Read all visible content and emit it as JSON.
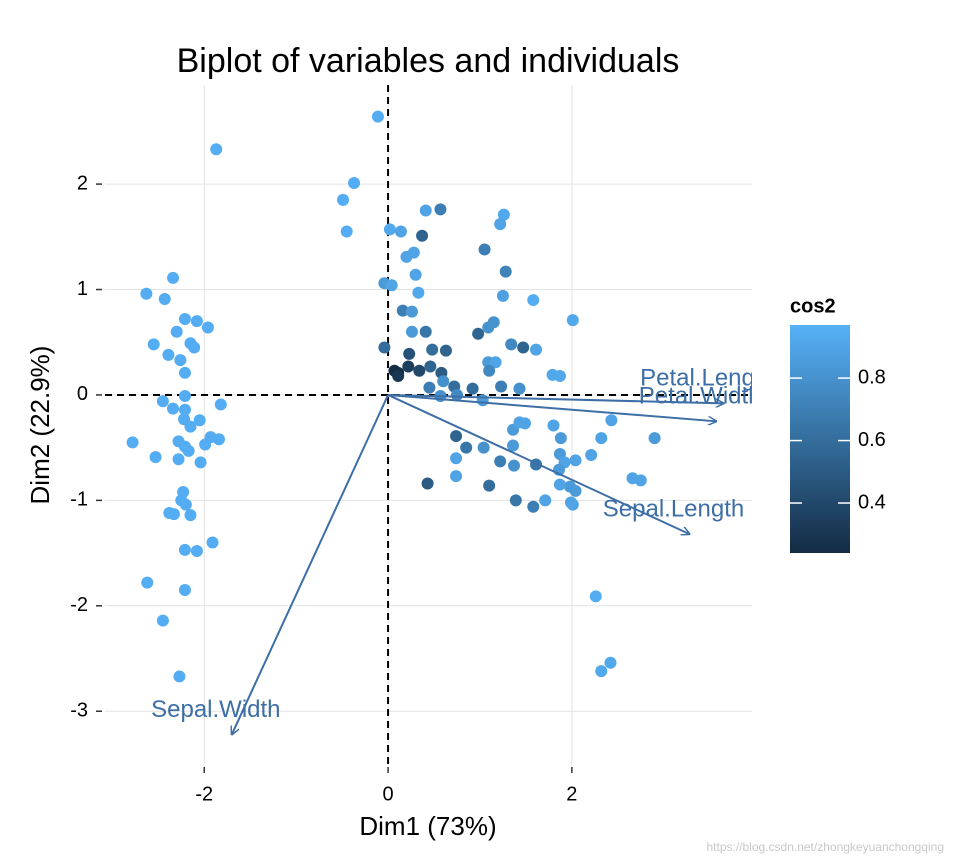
{
  "chart_data": {
    "type": "biplot",
    "title": "Biplot of variables and individuals",
    "x_label": "Dim1 (73%)",
    "y_label": "Dim2 (22.9%)",
    "xlim": [
      -3.08,
      3.96
    ],
    "ylim": [
      -3.51,
      2.94
    ],
    "xticks": [
      -2,
      0,
      2
    ],
    "yticks": [
      -3,
      -2,
      -1,
      0,
      1,
      2
    ],
    "grid": true,
    "x": [
      -1.87,
      -2.34,
      -2.63,
      -2.43,
      -2.21,
      -2.08,
      -2.3,
      -1.96,
      -2.15,
      -2.11,
      -2.55,
      -2.39,
      -2.26,
      -2.21,
      -2.21,
      -2.45,
      -1.82,
      -2.34,
      -2.21,
      -2.22,
      -2.05,
      -2.15,
      -2.78,
      -2.28,
      -1.93,
      -1.84,
      -1.99,
      -2.21,
      -2.17,
      -2.53,
      -2.28,
      -2.04,
      -2.23,
      -2.25,
      -2.2,
      -2.38,
      -2.33,
      -2.15,
      -1.91,
      -2.21,
      -2.08,
      -2.62,
      -2.21,
      -2.45,
      -2.27,
      -0.11,
      -0.37,
      -0.49,
      -0.45,
      0.02,
      0.14,
      0.37,
      0.41,
      0.57,
      1.26,
      1.22,
      1.05,
      0.2,
      0.28,
      1.28,
      -0.04,
      0.04,
      0.3,
      0.33,
      1.25,
      1.58,
      0.16,
      0.26,
      2.01,
      1.15,
      1.09,
      0.26,
      0.41,
      0.98,
      -0.04,
      1.34,
      0.48,
      0.63,
      0.23,
      1.47,
      1.61,
      0.22,
      0.07,
      0.11,
      0.11,
      0.34,
      0.46,
      0.58,
      1.09,
      1.17,
      1.1,
      1.79,
      1.87,
      0.45,
      0.6,
      0.72,
      0.92,
      0.57,
      1.23,
      1.43,
      0.75,
      1.03,
      2.43,
      1.36,
      1.43,
      1.49,
      1.8,
      1.88,
      2.32,
      2.9,
      0.74,
      0.85,
      1.04,
      1.36,
      1.87,
      2.21,
      1.22,
      0.74,
      1.61,
      1.92,
      2.04,
      1.86,
      2.66,
      2.75,
      0.74,
      1.37,
      0.43,
      1.1,
      2.04,
      1.98,
      1.87,
      1.39,
      1.71,
      1.99,
      2.01,
      1.58,
      2.26,
      2.42,
      2.32
    ],
    "y": [
      2.33,
      1.11,
      0.96,
      0.91,
      0.72,
      0.7,
      0.6,
      0.64,
      0.49,
      0.45,
      0.48,
      0.38,
      0.33,
      0.21,
      -0.01,
      -0.06,
      -0.09,
      -0.13,
      -0.14,
      -0.23,
      -0.24,
      -0.3,
      -0.45,
      -0.44,
      -0.4,
      -0.42,
      -0.47,
      -0.49,
      -0.53,
      -0.59,
      -0.61,
      -0.64,
      -0.92,
      -1.0,
      -1.04,
      -1.12,
      -1.13,
      -1.14,
      -1.4,
      -1.47,
      -1.48,
      -1.78,
      -1.85,
      -2.14,
      -2.67,
      2.64,
      2.01,
      1.85,
      1.55,
      1.57,
      1.55,
      1.51,
      1.75,
      1.76,
      1.71,
      1.62,
      1.38,
      1.31,
      1.35,
      1.17,
      1.06,
      1.04,
      1.14,
      0.97,
      0.94,
      0.9,
      0.8,
      0.79,
      0.71,
      0.69,
      0.64,
      0.6,
      0.6,
      0.58,
      0.45,
      0.48,
      0.43,
      0.42,
      0.39,
      0.45,
      0.43,
      0.27,
      0.23,
      0.21,
      0.18,
      0.23,
      0.27,
      0.21,
      0.31,
      0.31,
      0.23,
      0.19,
      0.18,
      0.07,
      0.13,
      0.08,
      0.06,
      -0.01,
      0.08,
      0.06,
      0.0,
      -0.05,
      -0.24,
      -0.33,
      -0.26,
      -0.27,
      -0.29,
      -0.41,
      -0.41,
      -0.41,
      -0.39,
      -0.5,
      -0.5,
      -0.48,
      -0.56,
      -0.57,
      -0.63,
      -0.6,
      -0.66,
      -0.64,
      -0.62,
      -0.71,
      -0.79,
      -0.81,
      -0.77,
      -0.67,
      -0.84,
      -0.86,
      -0.91,
      -0.87,
      -0.85,
      -1.0,
      -1.0,
      -1.02,
      -1.04,
      -1.06,
      -1.91,
      -2.54,
      -2.62
    ],
    "cos2": [
      0.95,
      0.95,
      0.95,
      0.95,
      0.95,
      0.95,
      0.95,
      0.95,
      0.95,
      0.95,
      0.95,
      0.95,
      0.95,
      0.95,
      0.95,
      0.95,
      0.95,
      0.95,
      0.95,
      0.95,
      0.95,
      0.95,
      0.95,
      0.95,
      0.95,
      0.95,
      0.95,
      0.95,
      0.95,
      0.95,
      0.95,
      0.95,
      0.95,
      0.95,
      0.95,
      0.95,
      0.95,
      0.95,
      0.95,
      0.95,
      0.95,
      0.95,
      0.95,
      0.95,
      0.95,
      0.95,
      0.95,
      0.95,
      0.95,
      0.92,
      0.9,
      0.55,
      0.9,
      0.7,
      0.92,
      0.9,
      0.7,
      0.9,
      0.9,
      0.72,
      0.85,
      0.9,
      0.9,
      0.92,
      0.88,
      0.95,
      0.7,
      0.85,
      0.92,
      0.8,
      0.8,
      0.85,
      0.65,
      0.55,
      0.6,
      0.75,
      0.6,
      0.55,
      0.45,
      0.55,
      0.9,
      0.35,
      0.25,
      0.25,
      0.3,
      0.4,
      0.55,
      0.5,
      0.85,
      0.9,
      0.75,
      0.92,
      0.92,
      0.7,
      0.8,
      0.6,
      0.6,
      0.8,
      0.7,
      0.8,
      0.75,
      0.85,
      0.9,
      0.85,
      0.9,
      0.9,
      0.9,
      0.85,
      0.9,
      0.85,
      0.55,
      0.65,
      0.8,
      0.85,
      0.85,
      0.9,
      0.7,
      0.9,
      0.65,
      0.9,
      0.9,
      0.85,
      0.9,
      0.9,
      0.9,
      0.8,
      0.5,
      0.6,
      0.85,
      0.85,
      0.9,
      0.65,
      0.9,
      0.9,
      0.9,
      0.7,
      0.95,
      0.92,
      0.92
    ],
    "color_low": "#132B43",
    "color_high": "#56B1F7",
    "colorbar_title": "cos2",
    "colorbar_lim": [
      0.24,
      0.97
    ],
    "colorbar_ticks": [
      0.4,
      0.6,
      0.8
    ],
    "arrow_color": "#3d6ea5",
    "arrows": {
      "names": [
        "Petal.Length",
        "Petal.Width",
        "Sepal.Length",
        "Sepal.Width"
      ],
      "x": [
        3.65,
        3.57,
        3.28,
        -1.7
      ],
      "y": [
        -0.08,
        -0.25,
        -1.32,
        -3.22
      ]
    },
    "watermark": "https://blog.csdn.net/zhongkeyuanchongqing"
  }
}
